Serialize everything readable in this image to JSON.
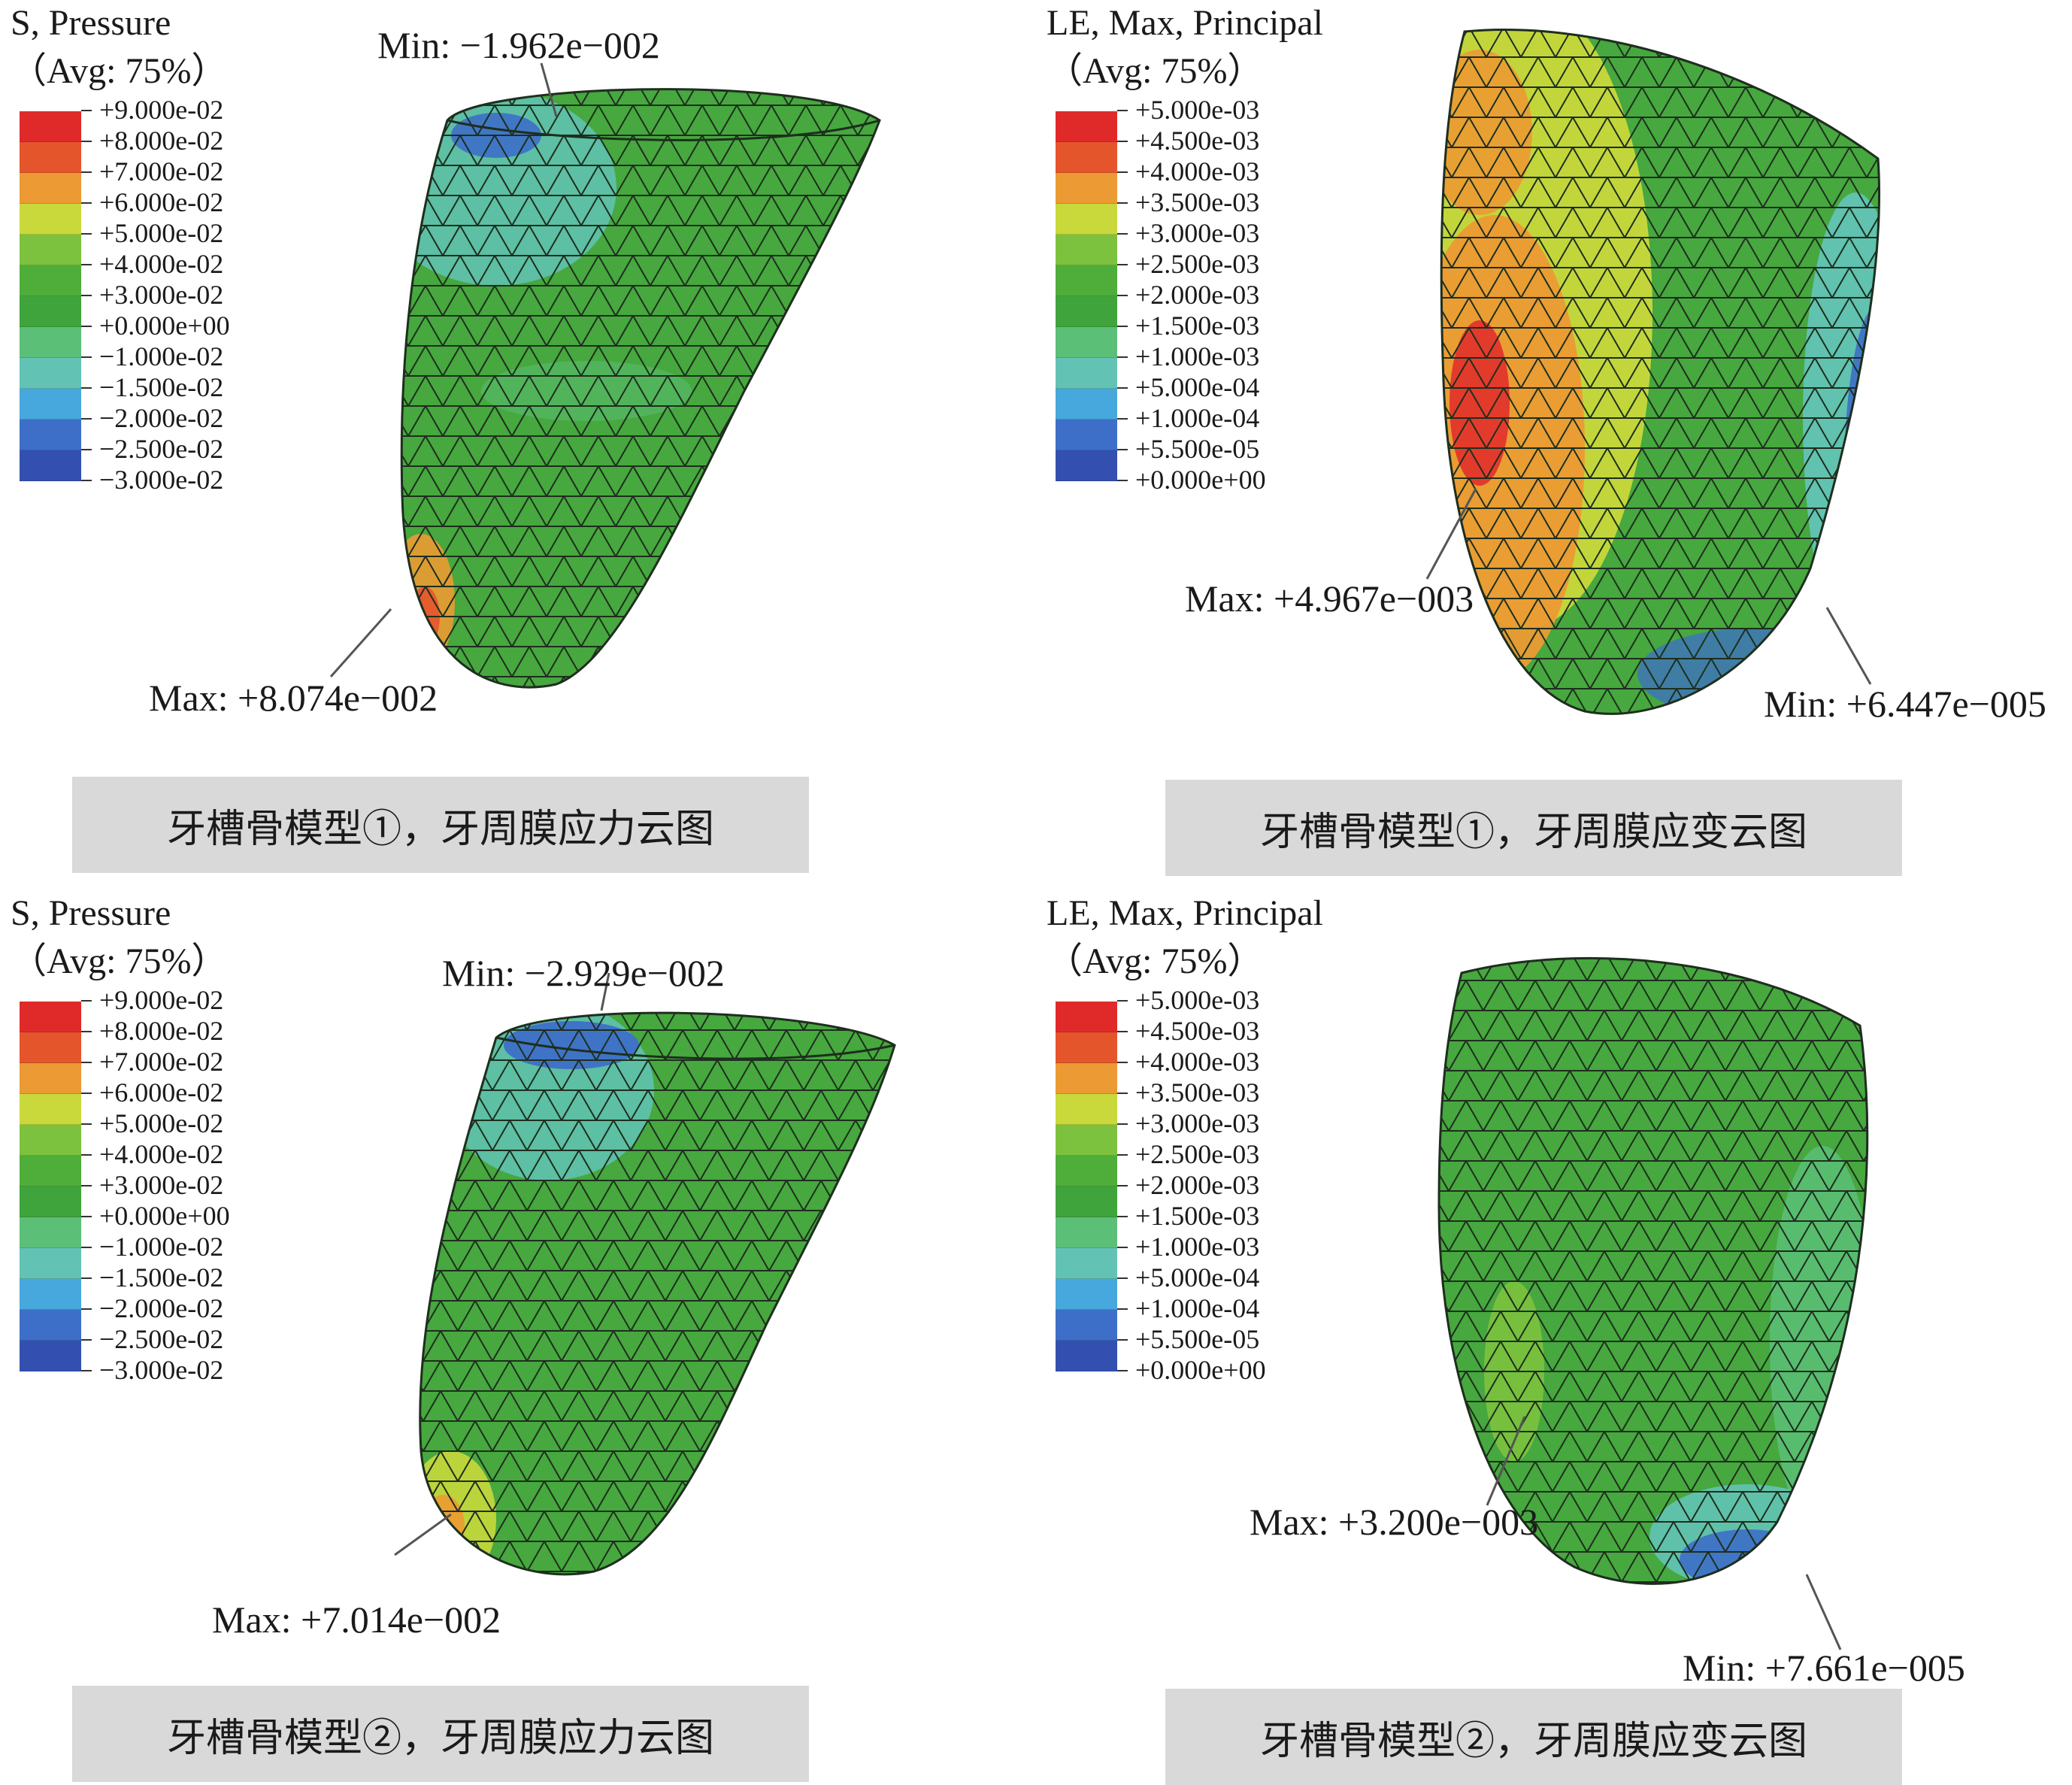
{
  "panels": [
    {
      "legend_title": "S, Pressure",
      "legend_avg": "（Avg: 75%）",
      "legend_ticks": [
        "+9.000e-02",
        "+8.000e-02",
        "+7.000e-02",
        "+6.000e-02",
        "+5.000e-02",
        "+4.000e-02",
        "+3.000e-02",
        "+0.000e+00",
        "−1.000e-02",
        "−1.500e-02",
        "−2.000e-02",
        "−2.500e-02",
        "−3.000e-02"
      ],
      "min_label": "Min: −1.962e−002",
      "max_label": "Max: +8.074e−002",
      "caption": "牙槽骨模型①，牙周膜应力云图"
    },
    {
      "legend_title": "LE, Max, Principal",
      "legend_avg": "（Avg: 75%）",
      "legend_ticks": [
        "+5.000e-03",
        "+4.500e-03",
        "+4.000e-03",
        "+3.500e-03",
        "+3.000e-03",
        "+2.500e-03",
        "+2.000e-03",
        "+1.500e-03",
        "+1.000e-03",
        "+5.000e-04",
        "+1.000e-04",
        "+5.500e-05",
        "+0.000e+00"
      ],
      "max_label": "Max: +4.967e−003",
      "min_label": "Min: +6.447e−005",
      "caption": "牙槽骨模型①，牙周膜应变云图"
    },
    {
      "legend_title": "S, Pressure",
      "legend_avg": "（Avg: 75%）",
      "legend_ticks": [
        "+9.000e-02",
        "+8.000e-02",
        "+7.000e-02",
        "+6.000e-02",
        "+5.000e-02",
        "+4.000e-02",
        "+3.000e-02",
        "+0.000e+00",
        "−1.000e-02",
        "−1.500e-02",
        "−2.000e-02",
        "−2.500e-02",
        "−3.000e-02"
      ],
      "min_label": "Min: −2.929e−002",
      "max_label": "Max: +7.014e−002",
      "caption": "牙槽骨模型②，牙周膜应力云图"
    },
    {
      "legend_title": "LE, Max, Principal",
      "legend_avg": "（Avg: 75%）",
      "legend_ticks": [
        "+5.000e-03",
        "+4.500e-03",
        "+4.000e-03",
        "+3.500e-03",
        "+3.000e-03",
        "+2.500e-03",
        "+2.000e-03",
        "+1.500e-03",
        "+1.000e-03",
        "+5.000e-04",
        "+1.000e-04",
        "+5.500e-05",
        "+0.000e+00"
      ],
      "max_label": "Max: +3.200e−003",
      "min_label": "Min: +7.661e−005",
      "caption": "牙槽骨模型②，牙周膜应变云图"
    }
  ],
  "colors": {
    "legend": [
      "#e02a2a",
      "#e5552c",
      "#ec9a33",
      "#c9d83b",
      "#7cc23e",
      "#4fae3a",
      "#3fa43c",
      "#5cbf78",
      "#62c3b5",
      "#46a8dc",
      "#3d6fc8",
      "#3350b0"
    ],
    "mesh_green": "#46a83e",
    "mesh_line": "#1e2e1e",
    "caption_bg": "#d9d9d9"
  }
}
